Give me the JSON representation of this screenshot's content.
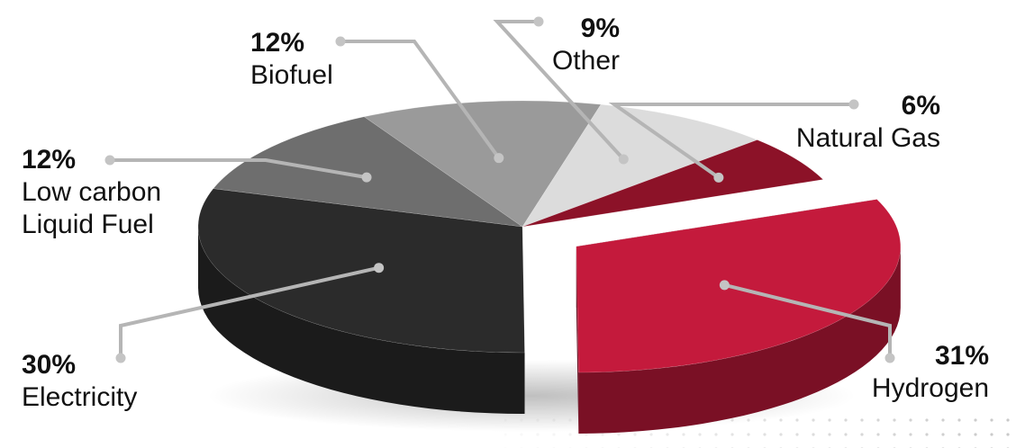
{
  "chart_data": {
    "type": "pie",
    "title": "",
    "three_d": true,
    "exploded": [
      "Hydrogen"
    ],
    "legend": "none",
    "slices": [
      {
        "label": "Hydrogen",
        "value": 31,
        "value_label": "31%",
        "color": "#c41a3c"
      },
      {
        "label": "Electricity",
        "value": 30,
        "value_label": "30%",
        "color": "#2b2b2b"
      },
      {
        "label": "Low carbon Liquid Fuel",
        "value": 12,
        "value_label": "12%",
        "color": "#6e6e6e"
      },
      {
        "label": "Biofuel",
        "value": 12,
        "value_label": "12%",
        "color": "#9a9a9a"
      },
      {
        "label": "Other",
        "value": 9,
        "value_label": "9%",
        "color": "#dcdcdc"
      },
      {
        "label": "Natural Gas",
        "value": 6,
        "value_label": "6%",
        "color": "#8c1228"
      }
    ]
  }
}
